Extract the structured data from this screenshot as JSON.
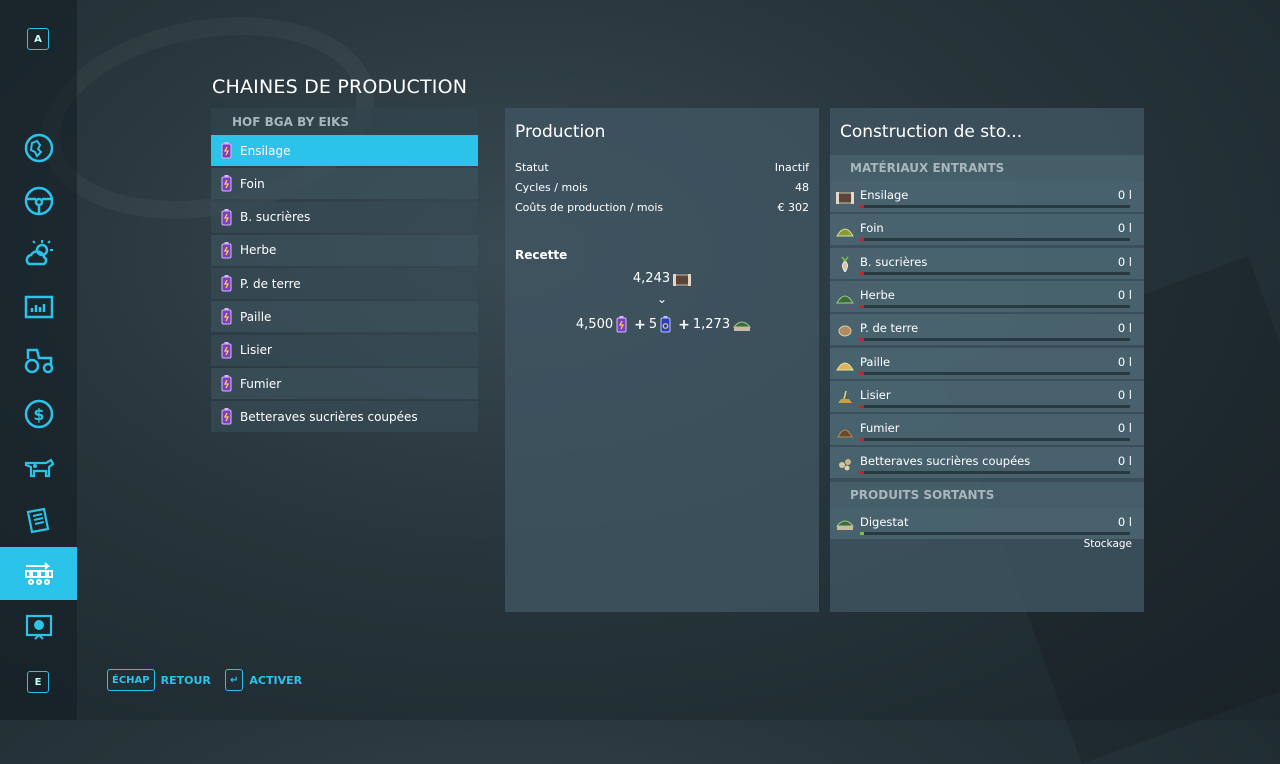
{
  "page_title": "CHAINES DE PRODUCTION",
  "sidebar": {
    "top_key": "A",
    "bottom_key": "E",
    "items": [
      {
        "icon": "map-icon"
      },
      {
        "icon": "steering-wheel-icon"
      },
      {
        "icon": "weather-icon"
      },
      {
        "icon": "statistics-icon"
      },
      {
        "icon": "tractor-icon"
      },
      {
        "icon": "finances-icon"
      },
      {
        "icon": "animals-icon"
      },
      {
        "icon": "contracts-icon"
      },
      {
        "icon": "production-icon",
        "active": true
      },
      {
        "icon": "help-icon"
      }
    ]
  },
  "list": {
    "header": "HOF BGA BY EIKS",
    "items": [
      {
        "label": "Ensilage",
        "selected": true
      },
      {
        "label": "Foin"
      },
      {
        "label": "B. sucrières"
      },
      {
        "label": "Herbe"
      },
      {
        "label": "P. de terre"
      },
      {
        "label": "Paille"
      },
      {
        "label": "Lisier"
      },
      {
        "label": "Fumier"
      },
      {
        "label": "Betteraves sucrières coupées"
      }
    ]
  },
  "production": {
    "title": "Production",
    "stats": [
      {
        "label": "Statut",
        "value": "Inactif"
      },
      {
        "label": "Cycles / mois",
        "value": "48"
      },
      {
        "label": "Coûts de production / mois",
        "value": "€ 302"
      }
    ],
    "recipe_label": "Recette",
    "recipe_output": "4,243",
    "recipe_arrow": "⌄",
    "recipe_inputs": [
      {
        "prefix": "",
        "value": "4,500",
        "icon": "battery-icon"
      },
      {
        "prefix": "+",
        "value": "5",
        "icon": "battery-icon"
      },
      {
        "prefix": "+",
        "value": "1,273",
        "icon": "digestate-icon"
      }
    ]
  },
  "storage": {
    "title": "Construction de sto...",
    "inputs_header": "MATÉRIAUX ENTRANTS",
    "inputs": [
      {
        "name": "Ensilage",
        "value": "0 l",
        "icon": "silage-icon",
        "fill": 0
      },
      {
        "name": "Foin",
        "value": "0 l",
        "icon": "hay-icon",
        "fill": 0
      },
      {
        "name": "B. sucrières",
        "value": "0 l",
        "icon": "sugarbeet-icon",
        "fill": 0
      },
      {
        "name": "Herbe",
        "value": "0 l",
        "icon": "grass-icon",
        "fill": 0
      },
      {
        "name": "P. de terre",
        "value": "0 l",
        "icon": "potato-icon",
        "fill": 0
      },
      {
        "name": "Paille",
        "value": "0 l",
        "icon": "straw-icon",
        "fill": 0
      },
      {
        "name": "Lisier",
        "value": "0 l",
        "icon": "slurry-icon",
        "fill": 0
      },
      {
        "name": "Fumier",
        "value": "0 l",
        "icon": "manure-icon",
        "fill": 0
      },
      {
        "name": "Betteraves sucrières coupées",
        "value": "0 l",
        "icon": "beet-cut-icon",
        "fill": 0
      }
    ],
    "outputs_header": "PRODUITS SORTANTS",
    "outputs": [
      {
        "name": "Digestat",
        "value": "0 l",
        "icon": "digestate-icon",
        "fill": 0
      }
    ],
    "output_mode": "Stockage"
  },
  "footer": {
    "back_key": "ÉCHAP",
    "back_label": "RETOUR",
    "activate_key": "↵",
    "activate_label": "ACTIVER"
  },
  "colors": {
    "accent": "#2bc3ea",
    "bar_empty": "#c8232c",
    "bar_output": "#7ac143"
  }
}
